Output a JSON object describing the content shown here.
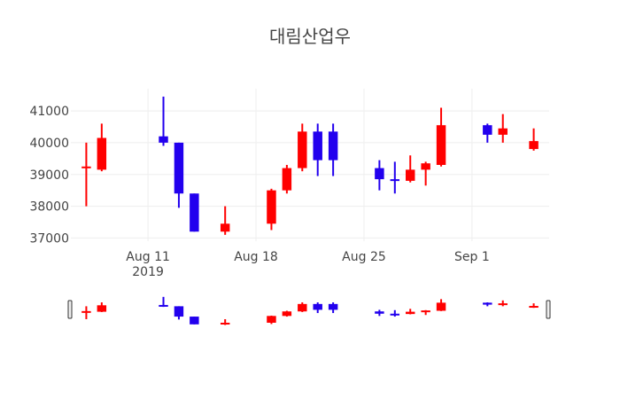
{
  "chart_data": {
    "type": "candlestick",
    "title": "대림산업우",
    "xlabel": "",
    "ylabel": "",
    "x_range": [
      "2019-08-06",
      "2019-09-06"
    ],
    "ylim": [
      36900,
      41700
    ],
    "y_ticks": [
      37000,
      38000,
      39000,
      40000,
      41000
    ],
    "x_ticks": [
      {
        "date": "2019-08-11",
        "label": "Aug 11",
        "sublabel": "2019"
      },
      {
        "date": "2019-08-18",
        "label": "Aug 18",
        "sublabel": ""
      },
      {
        "date": "2019-08-25",
        "label": "Aug 25",
        "sublabel": ""
      },
      {
        "date": "2019-09-01",
        "label": "Sep 1",
        "sublabel": ""
      }
    ],
    "grid": true,
    "rangeslider": true,
    "increasing_color": "#ff0000",
    "decreasing_color": "#2200ee",
    "candles": [
      {
        "date": "2019-08-07",
        "open": 39200,
        "high": 40000,
        "low": 38000,
        "close": 39250
      },
      {
        "date": "2019-08-08",
        "open": 39150,
        "high": 40600,
        "low": 39100,
        "close": 40150
      },
      {
        "date": "2019-08-12",
        "open": 40200,
        "high": 41450,
        "low": 39900,
        "close": 40000
      },
      {
        "date": "2019-08-13",
        "open": 40000,
        "high": 40000,
        "low": 37950,
        "close": 38400
      },
      {
        "date": "2019-08-14",
        "open": 38400,
        "high": 38400,
        "low": 37200,
        "close": 37200
      },
      {
        "date": "2019-08-16",
        "open": 37200,
        "high": 38000,
        "low": 37100,
        "close": 37450
      },
      {
        "date": "2019-08-19",
        "open": 37450,
        "high": 38550,
        "low": 37250,
        "close": 38500
      },
      {
        "date": "2019-08-20",
        "open": 38500,
        "high": 39300,
        "low": 38400,
        "close": 39200
      },
      {
        "date": "2019-08-21",
        "open": 39200,
        "high": 40600,
        "low": 39100,
        "close": 40350
      },
      {
        "date": "2019-08-22",
        "open": 40350,
        "high": 40600,
        "low": 38950,
        "close": 39450
      },
      {
        "date": "2019-08-23",
        "open": 40350,
        "high": 40600,
        "low": 38950,
        "close": 39450
      },
      {
        "date": "2019-08-26",
        "open": 39200,
        "high": 39450,
        "low": 38500,
        "close": 38850
      },
      {
        "date": "2019-08-27",
        "open": 38850,
        "high": 39400,
        "low": 38400,
        "close": 38800
      },
      {
        "date": "2019-08-28",
        "open": 38800,
        "high": 39600,
        "low": 38750,
        "close": 39150
      },
      {
        "date": "2019-08-29",
        "open": 39150,
        "high": 39400,
        "low": 38650,
        "close": 39350
      },
      {
        "date": "2019-08-30",
        "open": 39300,
        "high": 41100,
        "low": 39250,
        "close": 40550
      },
      {
        "date": "2019-09-02",
        "open": 40550,
        "high": 40600,
        "low": 40000,
        "close": 40250
      },
      {
        "date": "2019-09-03",
        "open": 40250,
        "high": 40900,
        "low": 40000,
        "close": 40450
      },
      {
        "date": "2019-09-05",
        "open": 39800,
        "high": 40450,
        "low": 39750,
        "close": 40050
      }
    ]
  }
}
